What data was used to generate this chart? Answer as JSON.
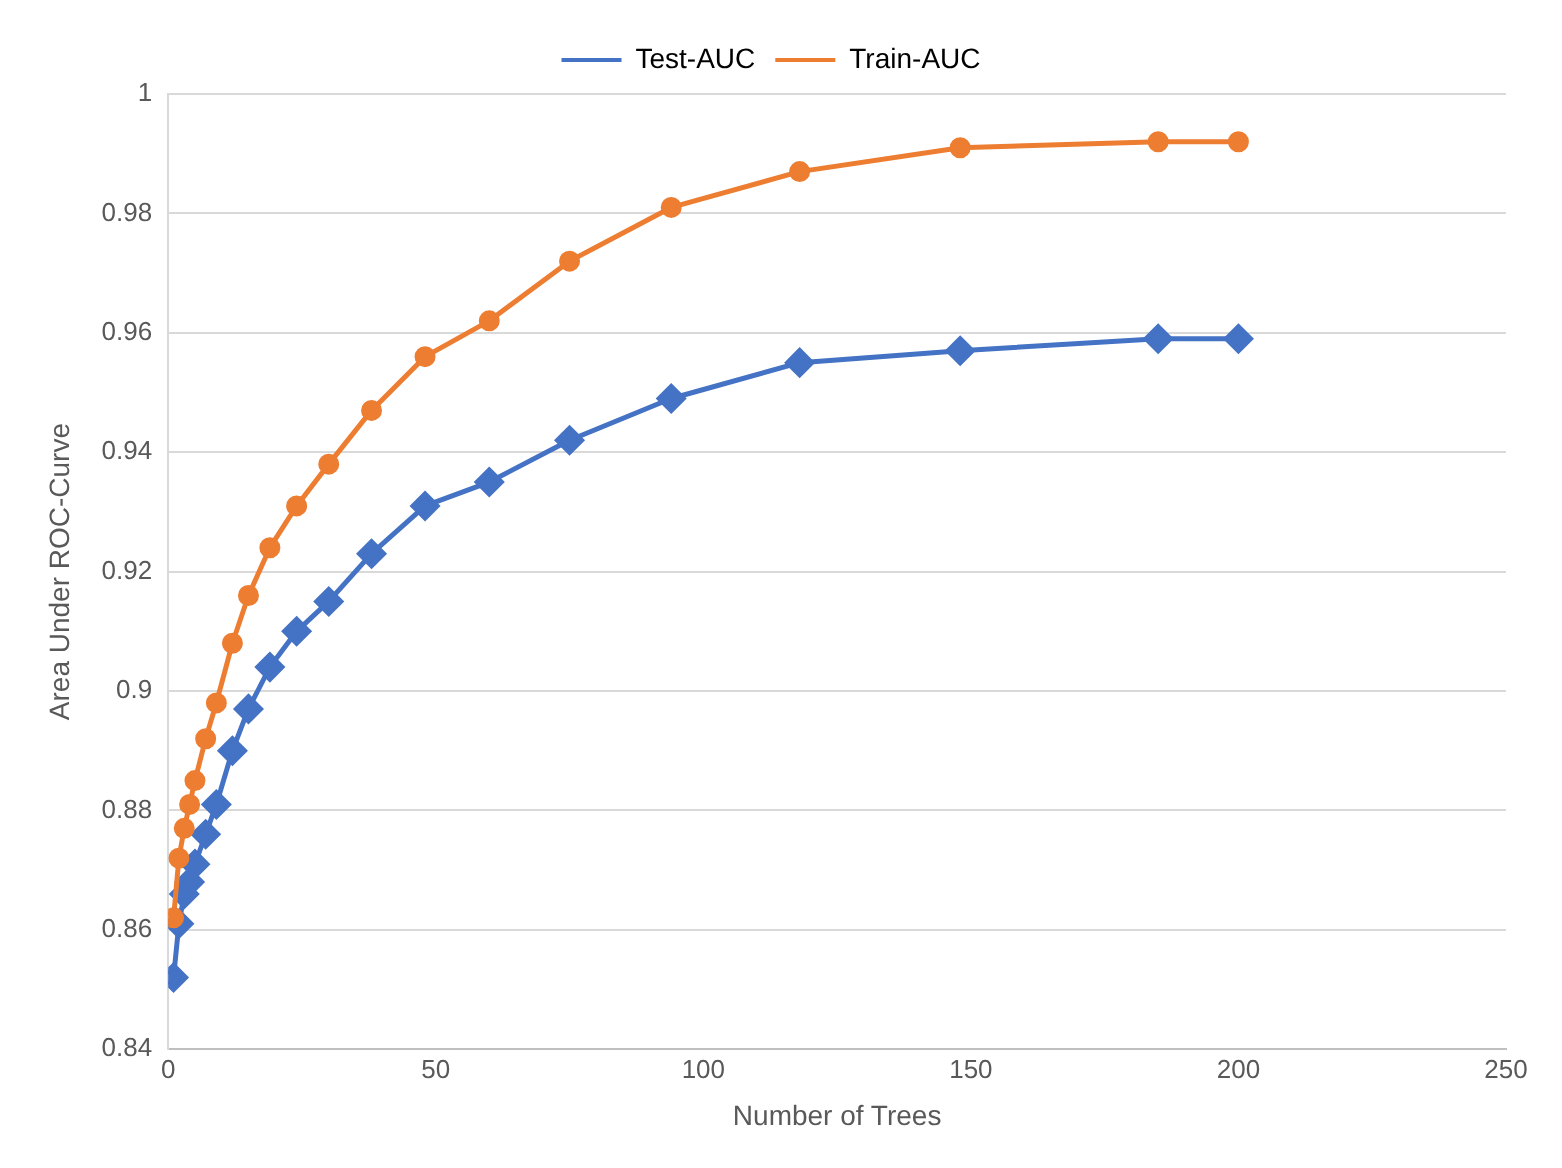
{
  "chart_data": {
    "type": "line",
    "xlabel": "Number of Trees",
    "ylabel": "Area Under ROC-Curve",
    "x": [
      1,
      2,
      3,
      4,
      5,
      7,
      9,
      12,
      15,
      19,
      24,
      30,
      38,
      48,
      60,
      75,
      94,
      118,
      148,
      185,
      200
    ],
    "series": [
      {
        "name": "Test-AUC",
        "color": "#4472c4",
        "marker": "diamond",
        "values": [
          0.852,
          0.861,
          0.866,
          0.868,
          0.871,
          0.876,
          0.881,
          0.89,
          0.897,
          0.904,
          0.91,
          0.915,
          0.923,
          0.931,
          0.935,
          0.942,
          0.949,
          0.955,
          0.957,
          0.959,
          0.959
        ]
      },
      {
        "name": "Train-AUC",
        "color": "#ed7d31",
        "marker": "circle",
        "values": [
          0.862,
          0.872,
          0.877,
          0.881,
          0.885,
          0.892,
          0.898,
          0.908,
          0.916,
          0.924,
          0.931,
          0.938,
          0.947,
          0.956,
          0.962,
          0.972,
          0.981,
          0.987,
          0.991,
          0.992,
          0.992
        ]
      }
    ],
    "xlim": [
      0,
      250
    ],
    "xticks": [
      0,
      50,
      100,
      150,
      200,
      250
    ],
    "ylim": [
      0.84,
      1
    ],
    "yticks": [
      0.84,
      0.86,
      0.88,
      0.9,
      0.92,
      0.94,
      0.96,
      0.98,
      1
    ],
    "grid": "y",
    "legend": "top",
    "line_style": "solid"
  }
}
